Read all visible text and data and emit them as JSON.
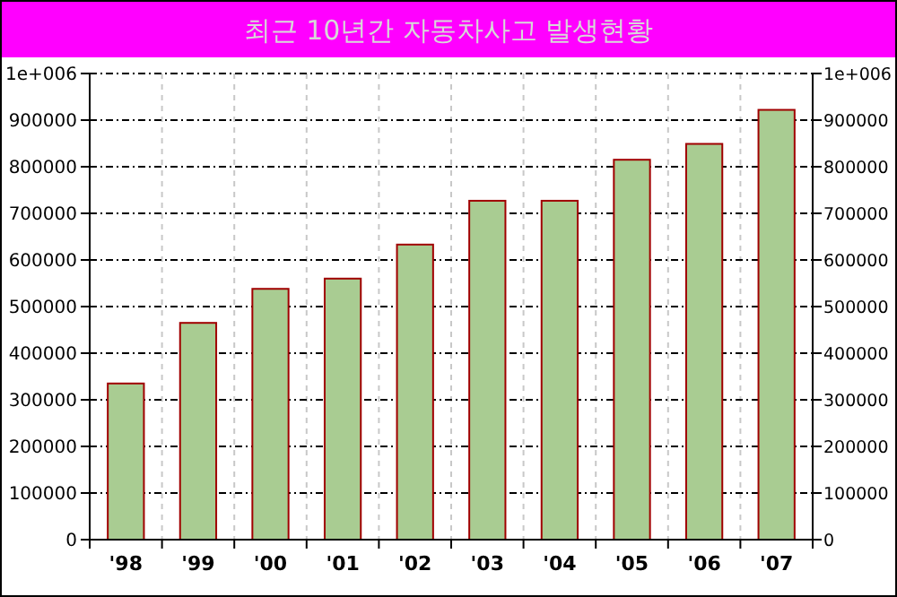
{
  "chart_data": {
    "type": "bar",
    "title": "최근 10년간 자동차사고 발생현황",
    "categories": [
      "'98",
      "'99",
      "'00",
      "'01",
      "'02",
      "'03",
      "'04",
      "'05",
      "'06",
      "'07"
    ],
    "values": [
      335000,
      465000,
      538000,
      560000,
      633000,
      727000,
      727000,
      815000,
      849000,
      922000
    ],
    "color": "#a9cc92",
    "ylim": [
      0,
      1000000
    ],
    "yticks": [
      0,
      100000,
      200000,
      300000,
      400000,
      500000,
      600000,
      700000,
      800000,
      900000,
      {
        "value": 1000000,
        "label": "1e+006"
      }
    ],
    "y2lim": [
      0,
      1000000
    ],
    "y2ticks": [
      0,
      100000,
      200000,
      300000,
      400000,
      500000,
      600000,
      700000,
      800000,
      900000,
      {
        "value": 1000000,
        "label": "1e+006"
      }
    ],
    "grid": true
  }
}
